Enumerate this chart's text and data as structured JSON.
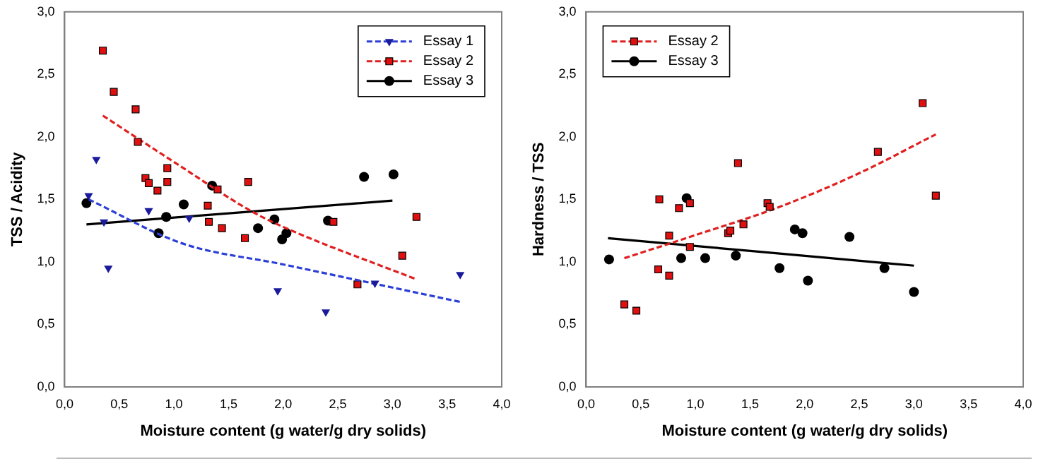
{
  "chart_data": [
    {
      "type": "scatter",
      "xlabel": "Moisture content (g water/g dry solids)",
      "ylabel": "TSS / Acidity",
      "xlim": [
        0,
        4
      ],
      "ylim": [
        0,
        3
      ],
      "xticks": [
        {
          "value": 0,
          "label": "0,0"
        },
        {
          "value": 0.5,
          "label": "0,5"
        },
        {
          "value": 1,
          "label": "1,0"
        },
        {
          "value": 1.5,
          "label": "1,5"
        },
        {
          "value": 2,
          "label": "2,0"
        },
        {
          "value": 2.5,
          "label": "2,5"
        },
        {
          "value": 3,
          "label": "3,0"
        },
        {
          "value": 3.5,
          "label": "3,5"
        },
        {
          "value": 4,
          "label": "4,0"
        }
      ],
      "yticks": [
        {
          "value": 0,
          "label": "0,0"
        },
        {
          "value": 0.5,
          "label": "0,5"
        },
        {
          "value": 1,
          "label": "1,0"
        },
        {
          "value": 1.5,
          "label": "1,5"
        },
        {
          "value": 2,
          "label": "2,0"
        },
        {
          "value": 2.5,
          "label": "2,5"
        },
        {
          "value": 3,
          "label": "3,0"
        }
      ],
      "grid": false,
      "legend": "top right",
      "series": [
        {
          "name": "Essay 1",
          "color": "#1a1a9c",
          "marker": "triangle",
          "x": [
            0.22,
            0.29,
            0.36,
            0.4,
            0.77,
            1.14,
            1.95,
            2.39,
            2.84,
            3.62
          ],
          "values": [
            1.53,
            1.82,
            1.32,
            0.95,
            1.41,
            1.35,
            0.77,
            0.6,
            0.83,
            0.9
          ]
        },
        {
          "type": "line",
          "color": "#2b3fd6",
          "line_style": "dashed",
          "marker": "none",
          "x": [
            0.22,
            1.07,
            2.0,
            3.62
          ],
          "values": [
            1.5,
            1.15,
            0.98,
            0.68
          ]
        },
        {
          "name": "Essay 2",
          "color": "#e01010",
          "marker": "square",
          "x": [
            0.35,
            0.45,
            0.65,
            0.67,
            0.74,
            0.77,
            0.85,
            0.94,
            0.94,
            1.4,
            1.31,
            1.32,
            1.44,
            1.65,
            1.68,
            2.46,
            2.68,
            3.09,
            3.22
          ],
          "values": [
            2.69,
            2.36,
            2.22,
            1.96,
            1.67,
            1.63,
            1.57,
            1.75,
            1.64,
            1.58,
            1.45,
            1.32,
            1.27,
            1.19,
            1.64,
            1.32,
            0.82,
            1.05,
            1.36
          ]
        },
        {
          "type": "line",
          "color": "#e02020",
          "line_style": "dashed",
          "marker": "none",
          "x": [
            0.35,
            1.0,
            1.7,
            2.0,
            3.22
          ],
          "values": [
            2.17,
            1.8,
            1.41,
            1.28,
            0.86
          ]
        },
        {
          "name": "Essay 3",
          "color": "#000000",
          "marker": "circle",
          "x": [
            0.2,
            0.86,
            0.93,
            1.09,
            1.35,
            1.77,
            1.92,
            1.99,
            2.03,
            2.41,
            2.74,
            3.01
          ],
          "values": [
            1.47,
            1.23,
            1.36,
            1.46,
            1.61,
            1.27,
            1.34,
            1.18,
            1.23,
            1.33,
            1.68,
            1.7
          ]
        },
        {
          "type": "line",
          "color": "#000000",
          "line_style": "solid",
          "marker": "none",
          "x": [
            0.2,
            3.0
          ],
          "values": [
            1.3,
            1.49
          ]
        }
      ]
    },
    {
      "type": "scatter",
      "xlabel": "Moisture content (g water/g dry solids)",
      "ylabel": "Hardness / TSS",
      "xlim": [
        0,
        4
      ],
      "ylim": [
        0,
        3
      ],
      "xticks": [
        {
          "value": 0,
          "label": "0,0"
        },
        {
          "value": 0.5,
          "label": "0,5"
        },
        {
          "value": 1,
          "label": "1,0"
        },
        {
          "value": 1.5,
          "label": "1,5"
        },
        {
          "value": 2,
          "label": "2,0"
        },
        {
          "value": 2.5,
          "label": "2,5"
        },
        {
          "value": 3,
          "label": "3,0"
        },
        {
          "value": 3.5,
          "label": "3,5"
        },
        {
          "value": 4,
          "label": "4,0"
        }
      ],
      "yticks": [
        {
          "value": 0,
          "label": "0,0"
        },
        {
          "value": 0.5,
          "label": "0,5"
        },
        {
          "value": 1,
          "label": "1,0"
        },
        {
          "value": 1.5,
          "label": "1,5"
        },
        {
          "value": 2,
          "label": "2,0"
        },
        {
          "value": 2.5,
          "label": "2,5"
        },
        {
          "value": 3,
          "label": "3,0"
        }
      ],
      "grid": false,
      "legend": "top left",
      "series": [
        {
          "name": "Essay 2",
          "color": "#e01010",
          "marker": "square",
          "x": [
            0.35,
            0.46,
            0.66,
            0.67,
            0.76,
            0.76,
            0.85,
            0.95,
            0.95,
            1.3,
            1.32,
            1.39,
            1.44,
            1.66,
            1.68,
            2.67,
            3.08,
            3.2
          ],
          "values": [
            0.66,
            0.61,
            0.94,
            1.5,
            0.89,
            1.21,
            1.43,
            1.47,
            1.12,
            1.23,
            1.25,
            1.79,
            1.3,
            1.47,
            1.44,
            1.88,
            2.27,
            1.53
          ]
        },
        {
          "type": "line",
          "color": "#e02020",
          "line_style": "dashed",
          "marker": "none",
          "x": [
            0.35,
            0.95,
            1.77,
            2.5,
            3.2
          ],
          "values": [
            1.03,
            1.2,
            1.44,
            1.71,
            2.02
          ]
        },
        {
          "name": "Essay 3",
          "color": "#000000",
          "marker": "circle",
          "x": [
            0.21,
            0.87,
            0.92,
            1.09,
            1.37,
            1.77,
            1.91,
            1.98,
            2.03,
            2.41,
            2.73,
            3.0
          ],
          "values": [
            1.02,
            1.03,
            1.51,
            1.03,
            1.05,
            0.95,
            1.26,
            1.23,
            0.85,
            1.2,
            0.95,
            0.76
          ]
        },
        {
          "type": "line",
          "color": "#000000",
          "line_style": "solid",
          "marker": "none",
          "x": [
            0.2,
            3.0
          ],
          "values": [
            1.19,
            0.97
          ]
        }
      ]
    }
  ]
}
